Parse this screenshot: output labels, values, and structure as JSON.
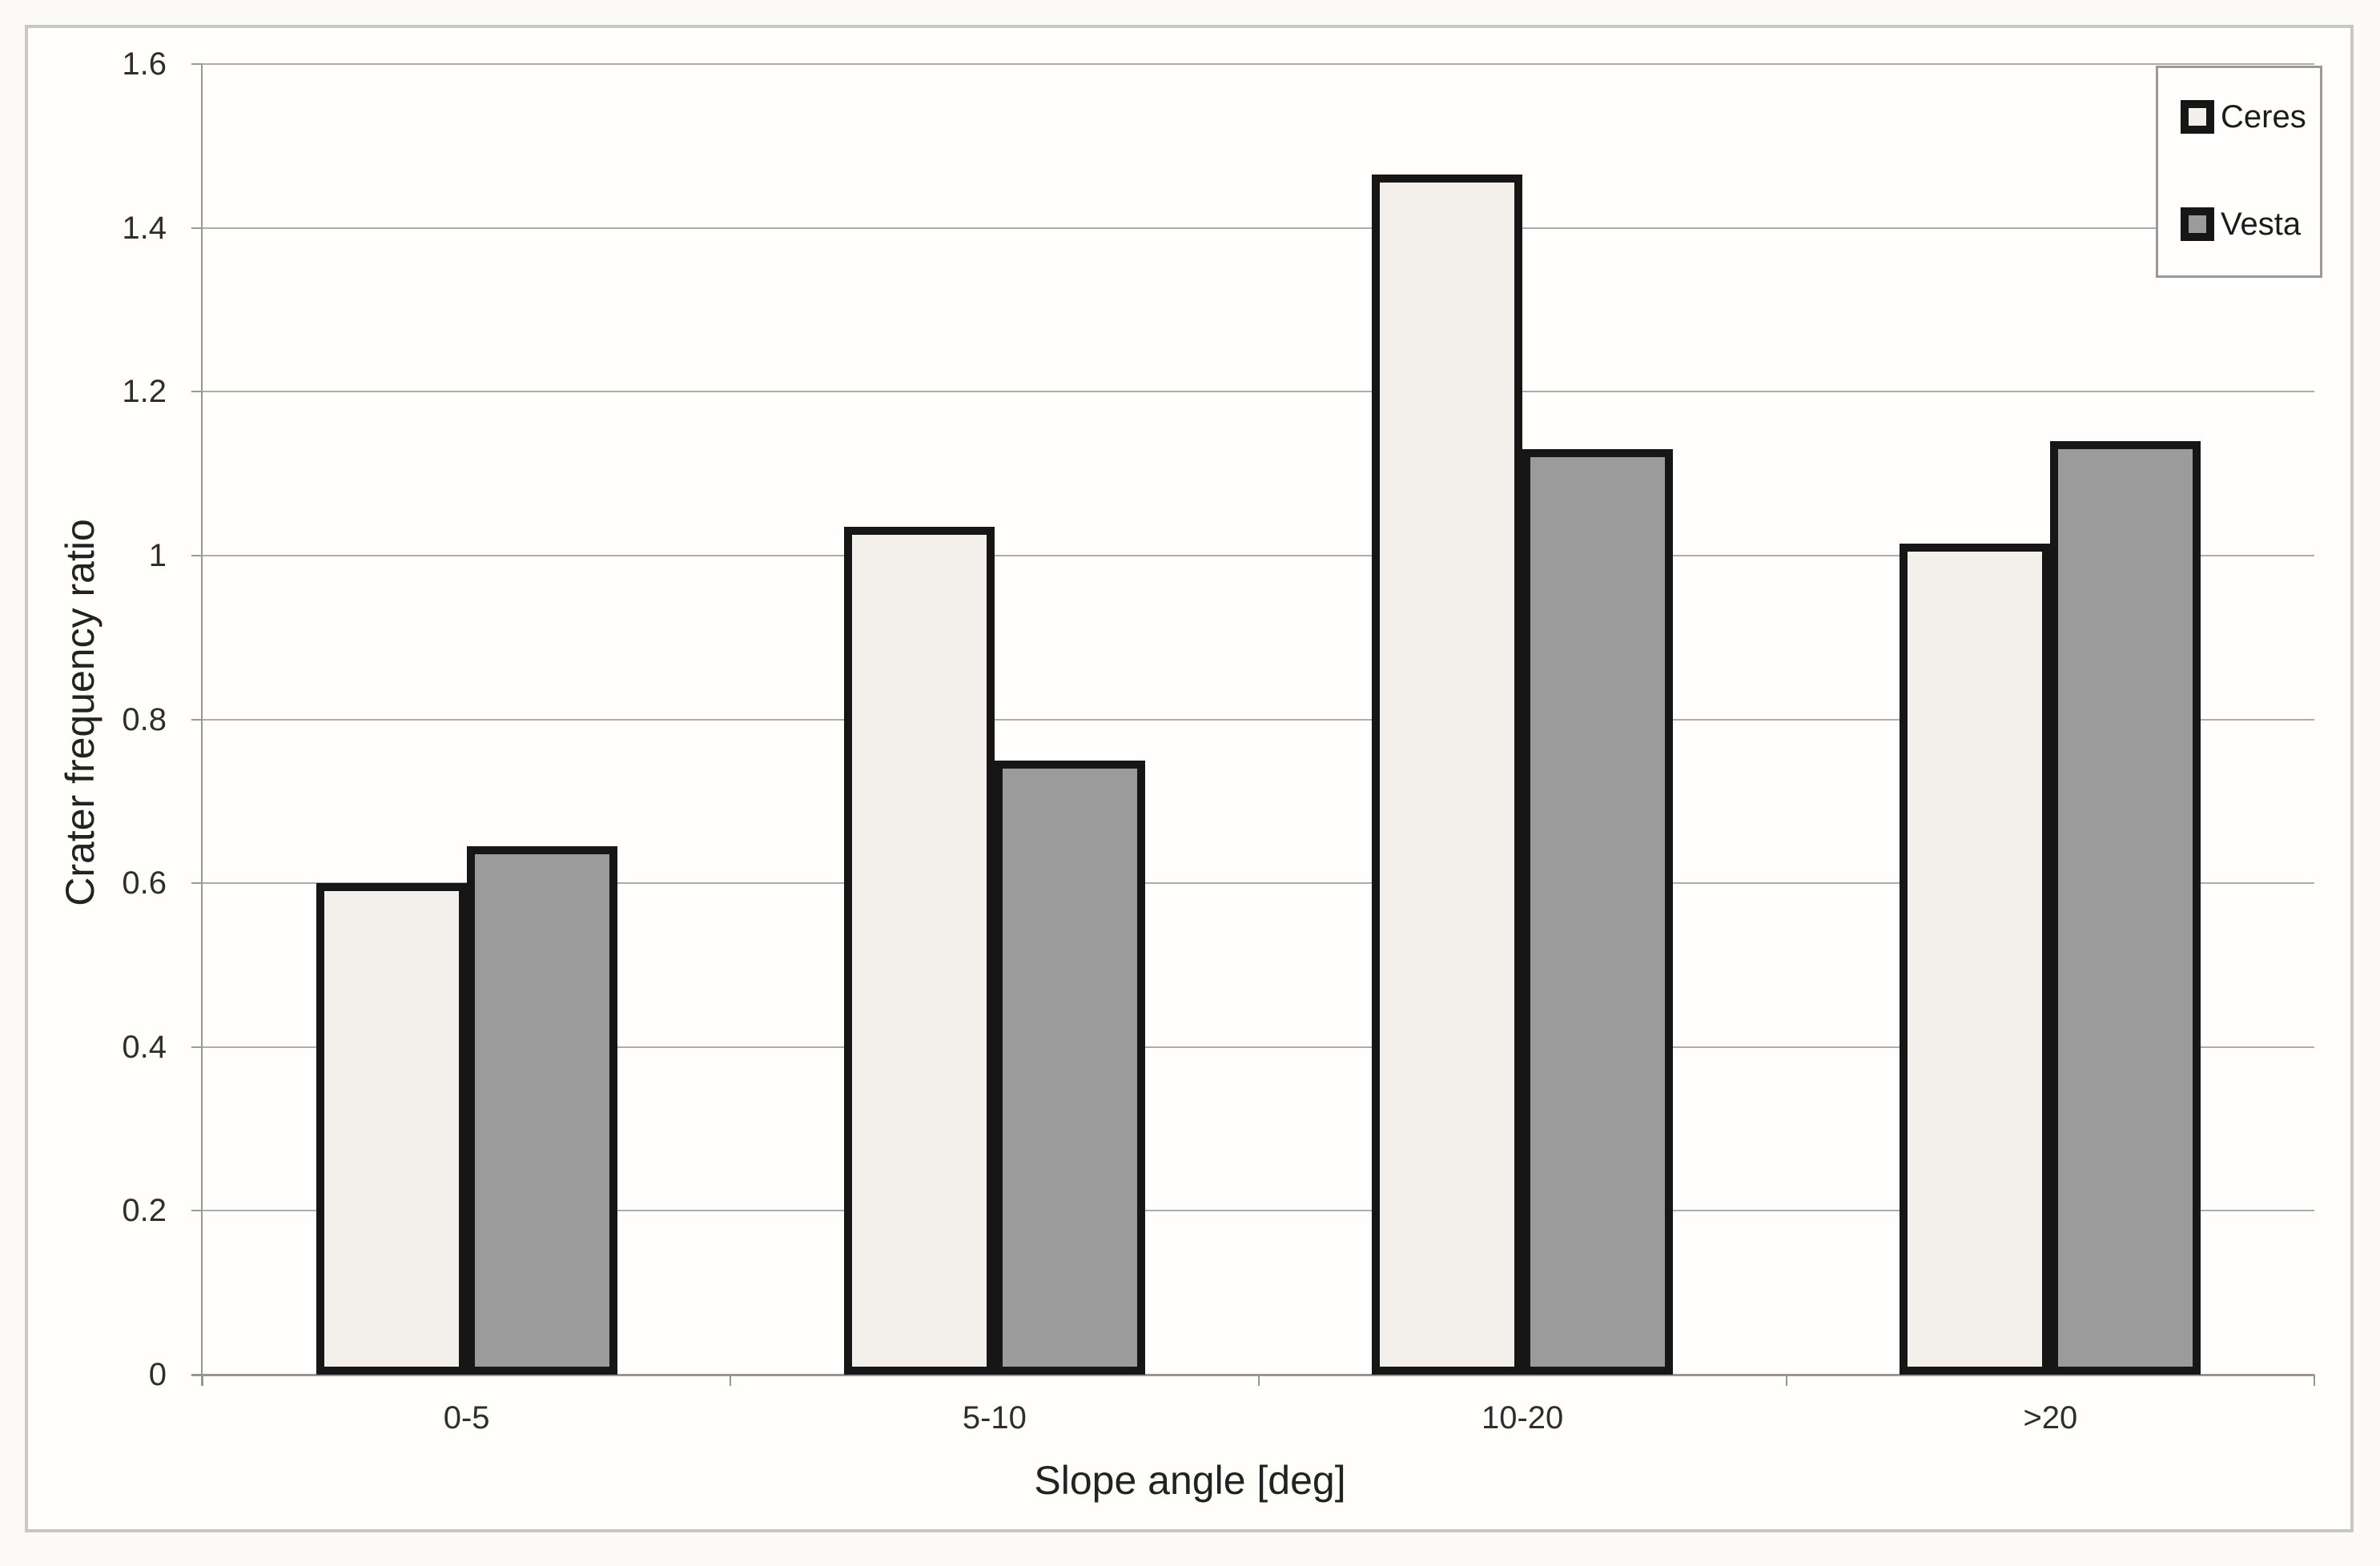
{
  "chart_data": {
    "type": "bar",
    "title": "",
    "categories": [
      "0-5",
      "5-10",
      "10-20",
      ">20"
    ],
    "series": [
      {
        "name": "Ceres",
        "color": "#f3efeb",
        "values": [
          0.6,
          1.035,
          1.465,
          1.015
        ]
      },
      {
        "name": "Vesta",
        "color": "#9b9b9b",
        "values": [
          0.645,
          0.75,
          1.13,
          1.14
        ]
      }
    ],
    "xlabel": "Slope angle [deg]",
    "ylabel": "Crater frequency ratio",
    "ylim": [
      0,
      1.6
    ],
    "ytick_step": 0.2,
    "ytick_labels": [
      "0",
      "0.2",
      "0.4",
      "0.6",
      "0.8",
      "1",
      "1.2",
      "1.4",
      "1.6"
    ],
    "grid": true,
    "legend_position": "top-right",
    "bar_border_color": "#161616"
  }
}
